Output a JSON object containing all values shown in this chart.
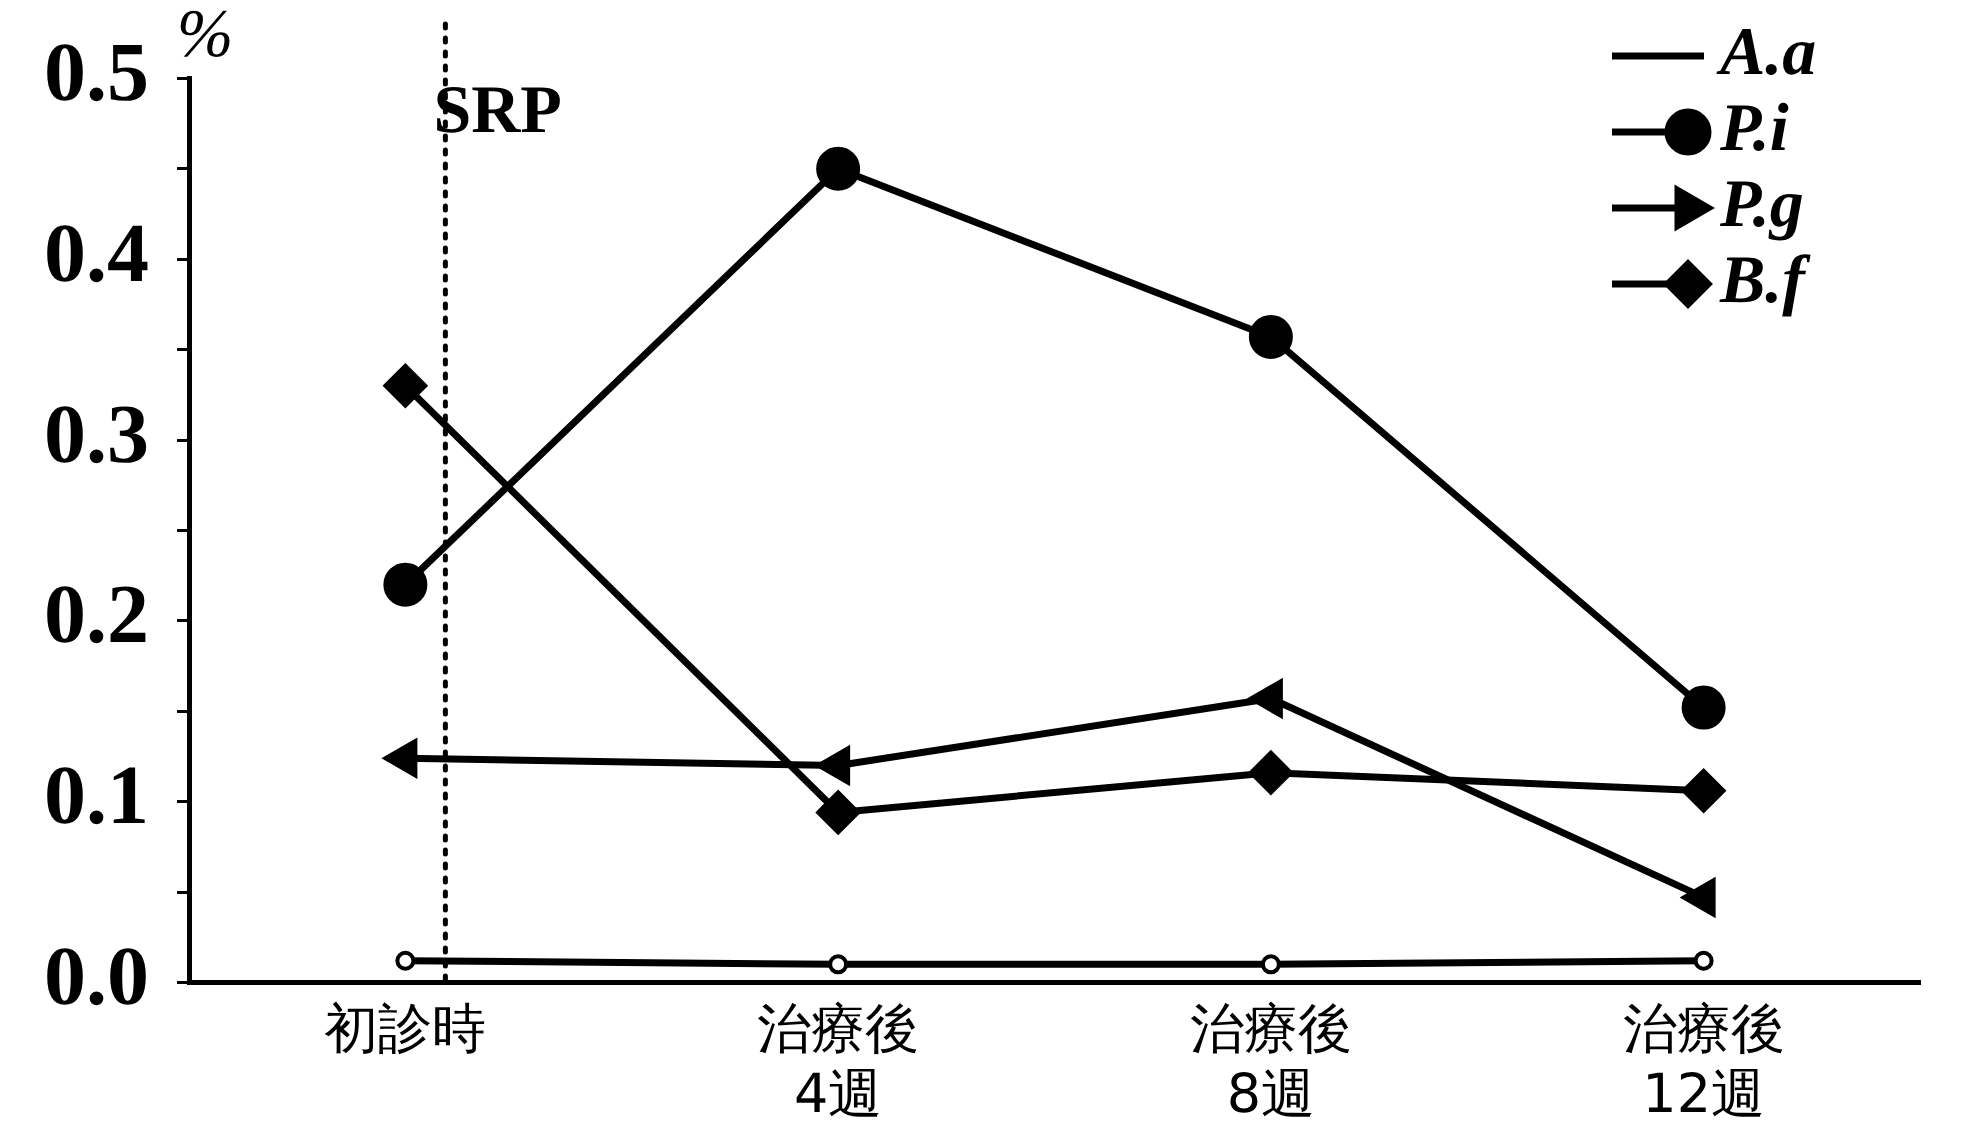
{
  "chart_data": {
    "type": "line",
    "ylabel": "%",
    "categories": [
      "初診時",
      "治療後\n4週",
      "治療後\n8週",
      "治療後\n12週"
    ],
    "series": [
      {
        "name": "A.a",
        "color": "#000000",
        "marker": "circle",
        "values": [
          0.012,
          0.01,
          0.01,
          0.012
        ]
      },
      {
        "name": "P.i",
        "color": "#000000",
        "marker": "circle",
        "values": [
          0.22,
          0.45,
          0.357,
          0.152
        ]
      },
      {
        "name": "P.g",
        "color": "#000000",
        "marker": "triangle",
        "values": [
          0.124,
          0.12,
          0.157,
          0.047
        ]
      },
      {
        "name": "B.f",
        "color": "#000000",
        "marker": "diamond",
        "values": [
          0.33,
          0.094,
          0.116,
          0.106
        ]
      }
    ],
    "ylim": [
      0,
      0.5
    ],
    "yticks": [
      {
        "value": 0,
        "label": "0.0"
      },
      {
        "value": 0.05,
        "label": null
      },
      {
        "value": 0.1,
        "label": "0.1"
      },
      {
        "value": 0.15,
        "label": null
      },
      {
        "value": 0.2,
        "label": "0.2"
      },
      {
        "value": 0.25,
        "label": null
      },
      {
        "value": 0.3,
        "label": "0.3"
      },
      {
        "value": 0.35,
        "label": null
      },
      {
        "value": 0.4,
        "label": "0.4"
      },
      {
        "value": 0.45,
        "label": null
      },
      {
        "value": 0.5,
        "label": "0.5"
      }
    ],
    "ref_lines": [
      {
        "axis": "x",
        "value": "初診時",
        "label": "SRP",
        "line_style": "dotted"
      }
    ],
    "legend": "top right",
    "grid": false
  }
}
